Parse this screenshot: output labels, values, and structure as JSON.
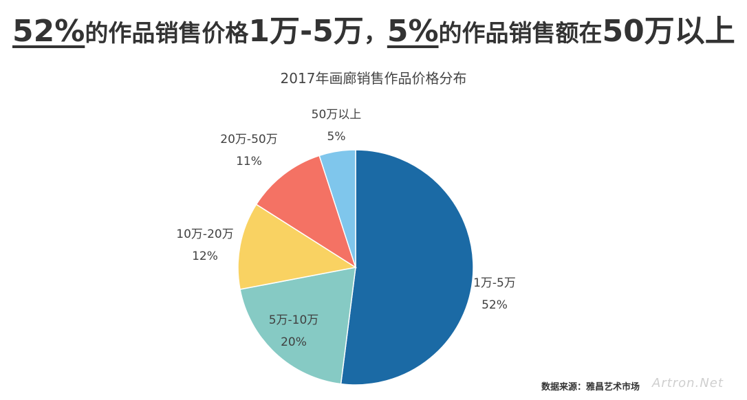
{
  "headline": {
    "part1_num": "52%",
    "part1_text": "的作品销售价格",
    "part1_range": "1万-5万",
    "separator": "，",
    "part2_num": "5%",
    "part2_text": "的作品销售额在",
    "part2_range": "50万以上"
  },
  "chart_data": {
    "type": "pie",
    "title": "2017年画廊销售作品价格分布",
    "slices": [
      {
        "label": "1万-5万",
        "value": 52,
        "display": "52%",
        "color": "#1b6aa5"
      },
      {
        "label": "5万-10万",
        "value": 20,
        "display": "20%",
        "color": "#86cac4"
      },
      {
        "label": "10万-20万",
        "value": 12,
        "display": "12%",
        "color": "#f9d262"
      },
      {
        "label": "20万-50万",
        "value": 11,
        "display": "11%",
        "color": "#f47264"
      },
      {
        "label": "50万以上",
        "value": 5,
        "display": "5%",
        "color": "#7fc6ec"
      }
    ]
  },
  "source": "数据来源：雅昌艺术市场",
  "watermark": "Artron.Net"
}
